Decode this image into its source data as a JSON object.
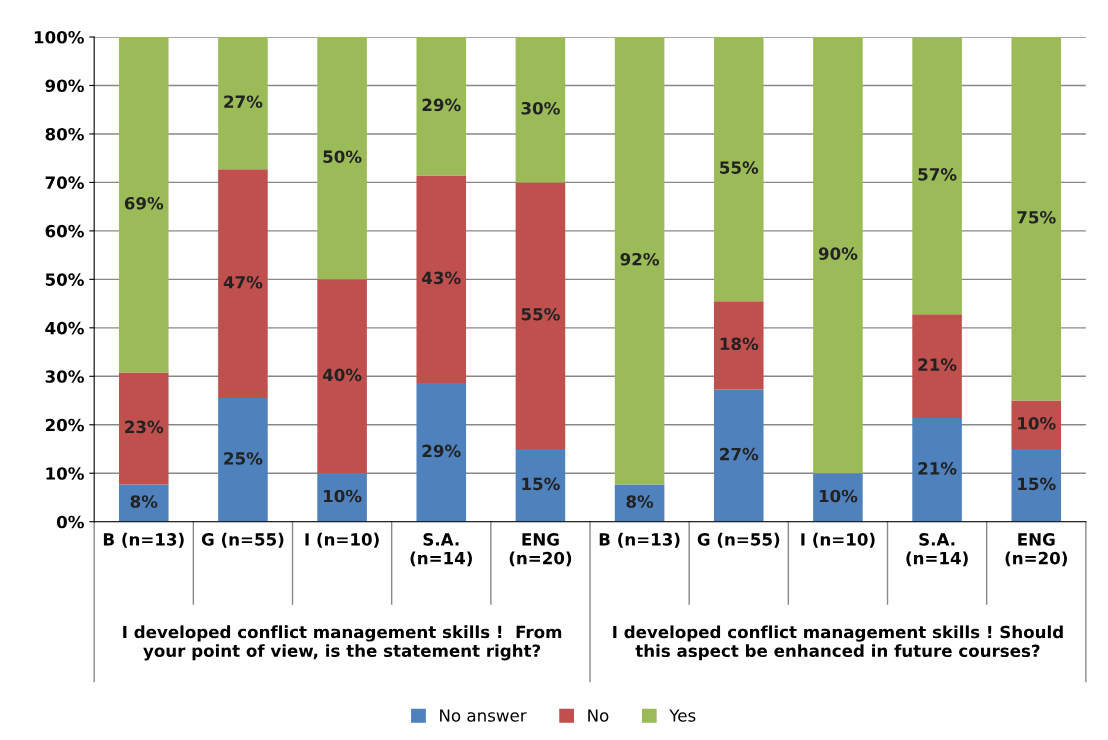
{
  "chart_data": {
    "type": "bar",
    "stacked": true,
    "categories": [
      "B (n=13)",
      "G (n=55)",
      "I (n=10)",
      "S.A.\n(n=14)",
      "ENG\n(n=20)",
      "B (n=13)",
      "G (n=55)",
      "I (n=10)",
      "S.A.\n(n=14)",
      "ENG\n(n=20)"
    ],
    "series": [
      {
        "name": "No answer",
        "color": "#4f81bd",
        "values": [
          7.7,
          25.5,
          10,
          28.6,
          15,
          7.7,
          27.3,
          10,
          21.4,
          15
        ],
        "value_labels": [
          "8%",
          "25%",
          "10%",
          "29%",
          "15%",
          "8%",
          "27%",
          "10%",
          "21%",
          "15%"
        ]
      },
      {
        "name": "No",
        "color": "#c0504d",
        "values": [
          23.1,
          47.2,
          40,
          42.8,
          55,
          null,
          18.2,
          null,
          21.4,
          10
        ],
        "value_labels": [
          "23%",
          "47%",
          "40%",
          "43%",
          "55%",
          null,
          "18%",
          null,
          "21%",
          "10%"
        ]
      },
      {
        "name": "Yes",
        "color": "#9bbb59",
        "values": [
          69.2,
          27.3,
          50,
          28.6,
          30,
          92.3,
          54.5,
          90,
          57.1,
          75
        ],
        "value_labels": [
          "69%",
          "27%",
          "50%",
          "29%",
          "30%",
          "92%",
          "55%",
          "90%",
          "57%",
          "75%"
        ]
      }
    ],
    "ylim": [
      0,
      100
    ],
    "yticks": [
      {
        "value": 0,
        "label": "0%"
      },
      {
        "value": 10,
        "label": "10%"
      },
      {
        "value": 20,
        "label": "20%"
      },
      {
        "value": 30,
        "label": "30%"
      },
      {
        "value": 40,
        "label": "40%"
      },
      {
        "value": 50,
        "label": "50%"
      },
      {
        "value": 60,
        "label": "60%"
      },
      {
        "value": 70,
        "label": "70%"
      },
      {
        "value": 80,
        "label": "80%"
      },
      {
        "value": 90,
        "label": "90%"
      },
      {
        "value": 100,
        "label": "100%"
      }
    ],
    "annotations": [
      "I developed conflict management skills !  From\nyour point of view, is the statement right?",
      "I developed conflict management skills ! Should\nthis aspect be enhanced in future courses?"
    ],
    "grid": "y",
    "legend": "bottom"
  }
}
